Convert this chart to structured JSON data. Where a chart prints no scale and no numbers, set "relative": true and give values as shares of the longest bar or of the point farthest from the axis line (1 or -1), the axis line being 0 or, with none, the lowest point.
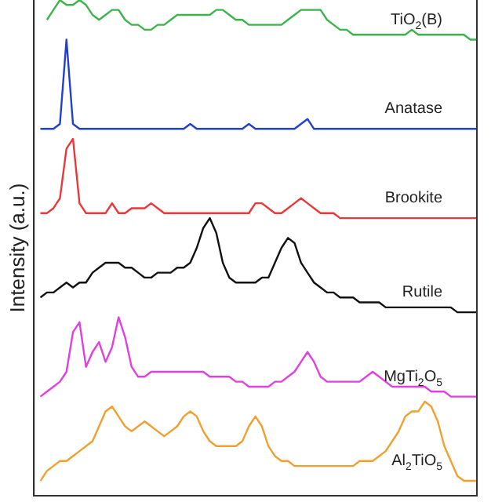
{
  "chart_data": {
    "type": "line",
    "ylabel": "Intensity (a.u.)",
    "relative": true,
    "legend": false,
    "grid": false,
    "marker": "none",
    "line_style": "solid",
    "tick_labels": false,
    "categories": [
      null,
      null,
      null,
      null,
      null,
      null,
      null,
      null,
      null,
      null,
      null,
      null,
      null,
      null,
      null,
      null,
      null,
      null,
      null,
      null,
      null,
      null,
      null,
      null,
      null,
      null,
      null,
      null,
      null,
      null,
      null,
      null,
      null,
      null,
      null,
      null,
      null,
      null,
      null,
      null,
      null,
      null,
      null,
      null,
      null,
      null,
      null,
      null,
      null,
      null,
      null,
      null,
      null,
      null,
      null,
      null,
      null,
      null,
      null,
      null,
      null,
      null,
      null,
      null,
      null,
      null,
      null,
      null,
      null
    ],
    "series": [
      {
        "name": "TiO$_{2}$(B)",
        "color": "#3cb44b",
        "values": [
          null,
          null,
          0.96,
          0.98,
          1.0,
          0.99,
          0.99,
          1.0,
          0.99,
          0.97,
          0.96,
          0.97,
          0.98,
          0.98,
          0.96,
          0.95,
          0.95,
          0.94,
          0.94,
          0.95,
          0.95,
          0.96,
          0.97,
          0.97,
          0.97,
          0.97,
          0.97,
          0.97,
          0.98,
          0.98,
          0.97,
          0.96,
          0.96,
          0.95,
          0.95,
          0.95,
          0.95,
          0.95,
          0.95,
          0.96,
          0.97,
          0.98,
          0.98,
          0.98,
          0.98,
          0.96,
          0.95,
          0.94,
          0.94,
          0.93,
          0.93,
          0.93,
          0.93,
          0.93,
          0.93,
          0.93,
          0.93,
          0.93,
          0.94,
          0.93,
          0.93,
          0.93,
          0.93,
          0.93,
          0.93,
          0.93,
          0.93,
          0.92,
          0.92
        ]
      },
      {
        "name": "Anatase",
        "color": "#2040d0",
        "values": [
          null,
          0.74,
          0.74,
          0.74,
          0.75,
          0.92,
          0.75,
          0.74,
          0.74,
          0.74,
          0.74,
          0.74,
          0.74,
          0.74,
          0.74,
          0.74,
          0.74,
          0.74,
          0.74,
          0.74,
          0.74,
          0.74,
          0.74,
          0.74,
          0.75,
          0.74,
          0.74,
          0.74,
          0.74,
          0.74,
          0.74,
          0.74,
          0.74,
          0.75,
          0.74,
          0.74,
          0.74,
          0.74,
          0.74,
          0.74,
          0.74,
          0.75,
          0.76,
          0.74,
          0.74,
          0.74,
          0.74,
          0.74,
          0.74,
          0.74,
          0.74,
          0.74,
          0.74,
          0.74,
          0.74,
          0.74,
          0.74,
          0.74,
          0.74,
          0.74,
          0.74,
          0.74,
          0.74,
          0.74,
          0.74,
          0.74,
          0.74,
          0.74,
          0.74
        ]
      },
      {
        "name": "Brookite",
        "color": "#e8383a",
        "values": [
          null,
          0.57,
          0.57,
          0.58,
          0.6,
          0.7,
          0.72,
          0.59,
          0.57,
          0.57,
          0.57,
          0.57,
          0.59,
          0.57,
          0.57,
          0.58,
          0.58,
          0.58,
          0.59,
          0.58,
          0.57,
          0.57,
          0.57,
          0.57,
          0.57,
          0.57,
          0.57,
          0.57,
          0.57,
          0.57,
          0.57,
          0.57,
          0.57,
          0.57,
          0.59,
          0.59,
          0.58,
          0.57,
          0.57,
          0.58,
          0.59,
          0.6,
          0.59,
          0.58,
          0.57,
          0.57,
          0.57,
          0.56,
          0.56,
          0.56,
          0.56,
          0.56,
          0.56,
          0.56,
          0.56,
          0.56,
          0.56,
          0.56,
          0.56,
          0.56,
          0.56,
          0.56,
          0.56,
          0.56,
          0.56,
          0.56,
          0.56,
          0.56,
          0.56
        ]
      },
      {
        "name": "Rutile",
        "color": "#111111",
        "values": [
          null,
          0.4,
          0.41,
          0.41,
          0.42,
          0.43,
          0.42,
          0.43,
          0.43,
          0.45,
          0.46,
          0.47,
          0.47,
          0.47,
          0.46,
          0.46,
          0.45,
          0.44,
          0.44,
          0.45,
          0.45,
          0.45,
          0.46,
          0.46,
          0.47,
          0.5,
          0.54,
          0.56,
          0.53,
          0.47,
          0.44,
          0.43,
          0.43,
          0.43,
          0.43,
          0.44,
          0.44,
          0.47,
          0.5,
          0.52,
          0.51,
          0.47,
          0.45,
          0.43,
          0.42,
          0.41,
          0.41,
          0.4,
          0.4,
          0.4,
          0.39,
          0.39,
          0.39,
          0.39,
          0.38,
          0.38,
          0.38,
          0.38,
          0.38,
          0.38,
          0.38,
          0.38,
          0.38,
          0.38,
          0.38,
          0.37,
          0.37,
          0.37,
          0.37
        ]
      },
      {
        "name": "MgTi$_{2}$O$_{5}$",
        "color": "#e040e0",
        "values": [
          null,
          0.2,
          0.21,
          0.22,
          0.23,
          0.25,
          0.33,
          0.35,
          0.26,
          0.29,
          0.31,
          0.27,
          0.3,
          0.36,
          0.32,
          0.26,
          0.24,
          0.24,
          0.25,
          0.25,
          0.25,
          0.25,
          0.25,
          0.25,
          0.25,
          0.25,
          0.25,
          0.24,
          0.24,
          0.24,
          0.24,
          0.23,
          0.23,
          0.22,
          0.22,
          0.22,
          0.22,
          0.23,
          0.23,
          0.24,
          0.25,
          0.27,
          0.29,
          0.27,
          0.24,
          0.23,
          0.23,
          0.23,
          0.23,
          0.23,
          0.23,
          0.24,
          0.25,
          0.24,
          0.23,
          0.22,
          0.22,
          0.22,
          0.22,
          0.22,
          0.22,
          0.21,
          0.21,
          0.21,
          0.2,
          0.2,
          0.2,
          0.2,
          0.2
        ]
      },
      {
        "name": "Al$_{2}$TiO$_{5}$",
        "color": "#f0a030",
        "values": [
          null,
          0.03,
          0.05,
          0.06,
          0.07,
          0.07,
          0.08,
          0.09,
          0.1,
          0.11,
          0.14,
          0.17,
          0.18,
          0.16,
          0.14,
          0.13,
          0.14,
          0.15,
          0.14,
          0.13,
          0.12,
          0.13,
          0.14,
          0.16,
          0.17,
          0.16,
          0.13,
          0.11,
          0.1,
          0.1,
          0.1,
          0.1,
          0.11,
          0.14,
          0.16,
          0.14,
          0.1,
          0.08,
          0.07,
          0.07,
          0.06,
          0.06,
          0.06,
          0.06,
          0.06,
          0.06,
          0.06,
          0.06,
          0.06,
          0.06,
          0.07,
          0.07,
          0.07,
          0.08,
          0.09,
          0.11,
          0.13,
          0.16,
          0.17,
          0.17,
          0.19,
          0.18,
          0.15,
          0.1,
          0.07,
          0.04,
          0.03,
          0.03,
          0.03
        ]
      }
    ]
  }
}
